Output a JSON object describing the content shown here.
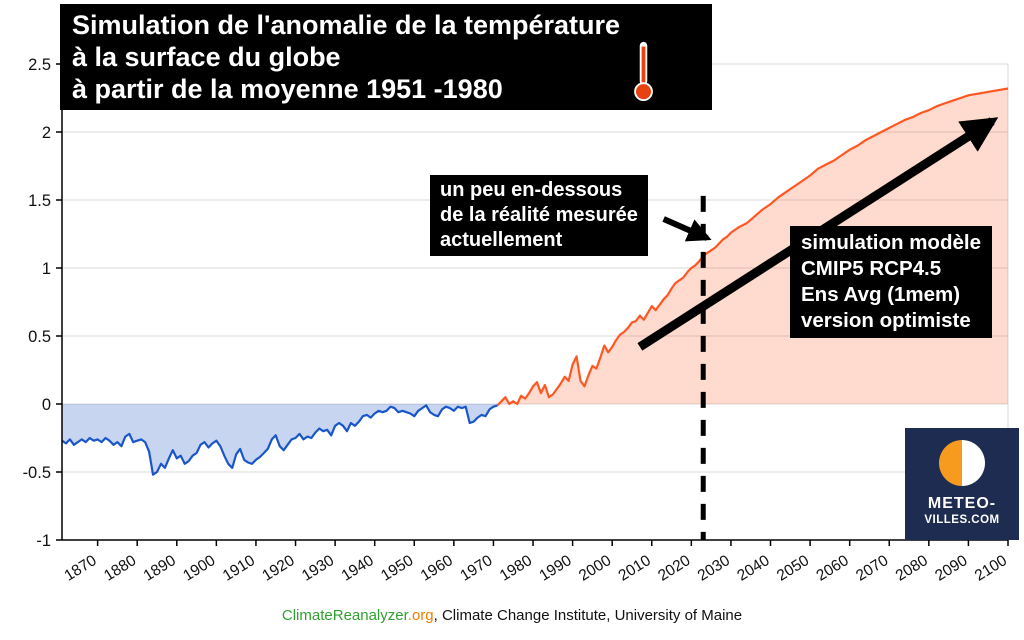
{
  "title": {
    "line1": "Simulation de l'anomalie de la température",
    "line2": "à la surface du globe",
    "line3": "à partir de la moyenne 1951 -1980"
  },
  "notes": {
    "below": {
      "line1": "un peu en-dessous",
      "line2": "de la réalité mesurée",
      "line3": "actuellement"
    },
    "model": {
      "line1": "simulation modèle",
      "line2": "CMIP5 RCP4.5",
      "line3": "Ens Avg (1mem)",
      "line4": "version optimiste"
    }
  },
  "logo": {
    "line1": "METEO-",
    "line2": "VILLES.COM"
  },
  "footer": {
    "link": "ClimateReanalyzer",
    "org": ".org",
    "rest": ", Climate Change Institute, University of Maine"
  },
  "icons": {
    "thermometer": "thermometer-icon",
    "trend_arrow": "up-right-arrow-icon",
    "pointer_arrow": "right-arrow-icon",
    "logo_circle": "half-orange-circle-icon"
  },
  "colors": {
    "line_hist": "#1a56c8",
    "fill_hist": "rgba(31,86,201,0.25)",
    "line_proj": "#ff5722",
    "fill_proj": "rgba(255,87,34,0.22)",
    "grid": "#d8d8d8",
    "axis": "#000000",
    "annotation_bg": "#000000",
    "annotation_fg": "#ffffff",
    "logo_bg": "#1d2c50",
    "logo_orange": "#f79b1e",
    "footer_green": "#2fa12f",
    "footer_orange": "#f07d00"
  },
  "chart_data": {
    "type": "line",
    "title": "Simulation de l'anomalie de la température à la surface du globe à partir de la moyenne 1951 -1980",
    "xlabel": "",
    "ylabel": "",
    "xlim": [
      1861,
      2100
    ],
    "ylim": [
      -1,
      2.5
    ],
    "yticks": [
      -1,
      -0.5,
      0,
      0.5,
      1,
      1.5,
      2,
      2.5
    ],
    "xticks": [
      1870,
      1880,
      1890,
      1900,
      1910,
      1920,
      1930,
      1940,
      1950,
      1960,
      1970,
      1980,
      1990,
      2000,
      2010,
      2020,
      2030,
      2040,
      2050,
      2060,
      2070,
      2080,
      2090,
      2100
    ],
    "grid": "horizontal",
    "split_year": 1971,
    "dashed_line": {
      "year": 2023,
      "y_top": 1.53,
      "y_bottom": -1
    },
    "arrows": {
      "big": {
        "from": [
          2007,
          0.42
        ],
        "to": [
          2096,
          2.08
        ]
      },
      "small": {
        "from": [
          2013,
          1.36
        ],
        "to": [
          2024,
          1.22
        ]
      }
    },
    "series": [
      {
        "id": "historique",
        "color": "#1a56c8",
        "fill": "rgba(31,86,201,0.25)",
        "points": [
          [
            1861,
            -0.27
          ],
          [
            1862,
            -0.29
          ],
          [
            1863,
            -0.26
          ],
          [
            1864,
            -0.3
          ],
          [
            1865,
            -0.28
          ],
          [
            1866,
            -0.26
          ],
          [
            1867,
            -0.28
          ],
          [
            1868,
            -0.25
          ],
          [
            1869,
            -0.27
          ],
          [
            1870,
            -0.26
          ],
          [
            1871,
            -0.28
          ],
          [
            1872,
            -0.25
          ],
          [
            1873,
            -0.27
          ],
          [
            1874,
            -0.3
          ],
          [
            1875,
            -0.28
          ],
          [
            1876,
            -0.31
          ],
          [
            1877,
            -0.24
          ],
          [
            1878,
            -0.22
          ],
          [
            1879,
            -0.28
          ],
          [
            1880,
            -0.27
          ],
          [
            1881,
            -0.26
          ],
          [
            1882,
            -0.28
          ],
          [
            1883,
            -0.35
          ],
          [
            1884,
            -0.52
          ],
          [
            1885,
            -0.5
          ],
          [
            1886,
            -0.44
          ],
          [
            1887,
            -0.47
          ],
          [
            1888,
            -0.4
          ],
          [
            1889,
            -0.34
          ],
          [
            1890,
            -0.4
          ],
          [
            1891,
            -0.38
          ],
          [
            1892,
            -0.44
          ],
          [
            1893,
            -0.42
          ],
          [
            1894,
            -0.38
          ],
          [
            1895,
            -0.36
          ],
          [
            1896,
            -0.3
          ],
          [
            1897,
            -0.28
          ],
          [
            1898,
            -0.32
          ],
          [
            1899,
            -0.29
          ],
          [
            1900,
            -0.27
          ],
          [
            1901,
            -0.31
          ],
          [
            1902,
            -0.38
          ],
          [
            1903,
            -0.44
          ],
          [
            1904,
            -0.47
          ],
          [
            1905,
            -0.37
          ],
          [
            1906,
            -0.33
          ],
          [
            1907,
            -0.41
          ],
          [
            1908,
            -0.43
          ],
          [
            1909,
            -0.44
          ],
          [
            1910,
            -0.41
          ],
          [
            1911,
            -0.39
          ],
          [
            1912,
            -0.36
          ],
          [
            1913,
            -0.33
          ],
          [
            1914,
            -0.26
          ],
          [
            1915,
            -0.23
          ],
          [
            1916,
            -0.31
          ],
          [
            1917,
            -0.34
          ],
          [
            1918,
            -0.3
          ],
          [
            1919,
            -0.26
          ],
          [
            1920,
            -0.25
          ],
          [
            1921,
            -0.22
          ],
          [
            1922,
            -0.26
          ],
          [
            1923,
            -0.24
          ],
          [
            1924,
            -0.25
          ],
          [
            1925,
            -0.21
          ],
          [
            1926,
            -0.18
          ],
          [
            1927,
            -0.2
          ],
          [
            1928,
            -0.19
          ],
          [
            1929,
            -0.23
          ],
          [
            1930,
            -0.16
          ],
          [
            1931,
            -0.14
          ],
          [
            1932,
            -0.16
          ],
          [
            1933,
            -0.2
          ],
          [
            1934,
            -0.14
          ],
          [
            1935,
            -0.16
          ],
          [
            1936,
            -0.13
          ],
          [
            1937,
            -0.09
          ],
          [
            1938,
            -0.08
          ],
          [
            1939,
            -0.1
          ],
          [
            1940,
            -0.07
          ],
          [
            1941,
            -0.05
          ],
          [
            1942,
            -0.06
          ],
          [
            1943,
            -0.05
          ],
          [
            1944,
            -0.02
          ],
          [
            1945,
            -0.03
          ],
          [
            1946,
            -0.06
          ],
          [
            1947,
            -0.05
          ],
          [
            1948,
            -0.06
          ],
          [
            1949,
            -0.07
          ],
          [
            1950,
            -0.09
          ],
          [
            1951,
            -0.05
          ],
          [
            1952,
            -0.03
          ],
          [
            1953,
            -0.01
          ],
          [
            1954,
            -0.06
          ],
          [
            1955,
            -0.08
          ],
          [
            1956,
            -0.09
          ],
          [
            1957,
            -0.04
          ],
          [
            1958,
            -0.02
          ],
          [
            1959,
            -0.03
          ],
          [
            1960,
            -0.05
          ],
          [
            1961,
            -0.02
          ],
          [
            1962,
            -0.03
          ],
          [
            1963,
            -0.02
          ],
          [
            1964,
            -0.14
          ],
          [
            1965,
            -0.13
          ],
          [
            1966,
            -0.1
          ],
          [
            1967,
            -0.08
          ],
          [
            1968,
            -0.09
          ],
          [
            1969,
            -0.04
          ],
          [
            1970,
            -0.02
          ],
          [
            1971,
            -0.01
          ]
        ]
      },
      {
        "id": "projection",
        "color": "#ff5722",
        "fill": "rgba(255,87,34,0.22)",
        "points": [
          [
            1971,
            -0.01
          ],
          [
            1972,
            0.02
          ],
          [
            1973,
            0.05
          ],
          [
            1974,
            0.0
          ],
          [
            1975,
            0.02
          ],
          [
            1976,
            0.0
          ],
          [
            1977,
            0.06
          ],
          [
            1978,
            0.04
          ],
          [
            1979,
            0.08
          ],
          [
            1980,
            0.13
          ],
          [
            1981,
            0.16
          ],
          [
            1982,
            0.08
          ],
          [
            1983,
            0.14
          ],
          [
            1984,
            0.05
          ],
          [
            1985,
            0.07
          ],
          [
            1986,
            0.11
          ],
          [
            1987,
            0.15
          ],
          [
            1988,
            0.2
          ],
          [
            1989,
            0.17
          ],
          [
            1990,
            0.29
          ],
          [
            1991,
            0.35
          ],
          [
            1992,
            0.17
          ],
          [
            1993,
            0.13
          ],
          [
            1994,
            0.21
          ],
          [
            1995,
            0.28
          ],
          [
            1996,
            0.26
          ],
          [
            1997,
            0.34
          ],
          [
            1998,
            0.43
          ],
          [
            1999,
            0.38
          ],
          [
            2000,
            0.42
          ],
          [
            2001,
            0.47
          ],
          [
            2002,
            0.51
          ],
          [
            2003,
            0.53
          ],
          [
            2004,
            0.56
          ],
          [
            2005,
            0.6
          ],
          [
            2006,
            0.61
          ],
          [
            2007,
            0.65
          ],
          [
            2008,
            0.62
          ],
          [
            2009,
            0.67
          ],
          [
            2010,
            0.72
          ],
          [
            2011,
            0.69
          ],
          [
            2012,
            0.73
          ],
          [
            2013,
            0.77
          ],
          [
            2014,
            0.8
          ],
          [
            2015,
            0.85
          ],
          [
            2016,
            0.89
          ],
          [
            2017,
            0.91
          ],
          [
            2018,
            0.93
          ],
          [
            2019,
            0.97
          ],
          [
            2020,
            1.0
          ],
          [
            2021,
            1.02
          ],
          [
            2022,
            1.05
          ],
          [
            2023,
            1.09
          ],
          [
            2024,
            1.11
          ],
          [
            2025,
            1.13
          ],
          [
            2026,
            1.15
          ],
          [
            2027,
            1.18
          ],
          [
            2028,
            1.21
          ],
          [
            2029,
            1.23
          ],
          [
            2030,
            1.26
          ],
          [
            2032,
            1.3
          ],
          [
            2034,
            1.33
          ],
          [
            2036,
            1.38
          ],
          [
            2038,
            1.43
          ],
          [
            2040,
            1.47
          ],
          [
            2042,
            1.52
          ],
          [
            2044,
            1.56
          ],
          [
            2046,
            1.6
          ],
          [
            2048,
            1.64
          ],
          [
            2050,
            1.68
          ],
          [
            2052,
            1.73
          ],
          [
            2054,
            1.76
          ],
          [
            2056,
            1.79
          ],
          [
            2058,
            1.83
          ],
          [
            2060,
            1.87
          ],
          [
            2062,
            1.9
          ],
          [
            2064,
            1.94
          ],
          [
            2066,
            1.97
          ],
          [
            2068,
            2.0
          ],
          [
            2070,
            2.03
          ],
          [
            2072,
            2.06
          ],
          [
            2074,
            2.09
          ],
          [
            2076,
            2.11
          ],
          [
            2078,
            2.14
          ],
          [
            2080,
            2.16
          ],
          [
            2082,
            2.19
          ],
          [
            2084,
            2.21
          ],
          [
            2086,
            2.23
          ],
          [
            2088,
            2.25
          ],
          [
            2090,
            2.27
          ],
          [
            2092,
            2.28
          ],
          [
            2094,
            2.29
          ],
          [
            2096,
            2.3
          ],
          [
            2098,
            2.31
          ],
          [
            2100,
            2.32
          ]
        ]
      }
    ]
  }
}
